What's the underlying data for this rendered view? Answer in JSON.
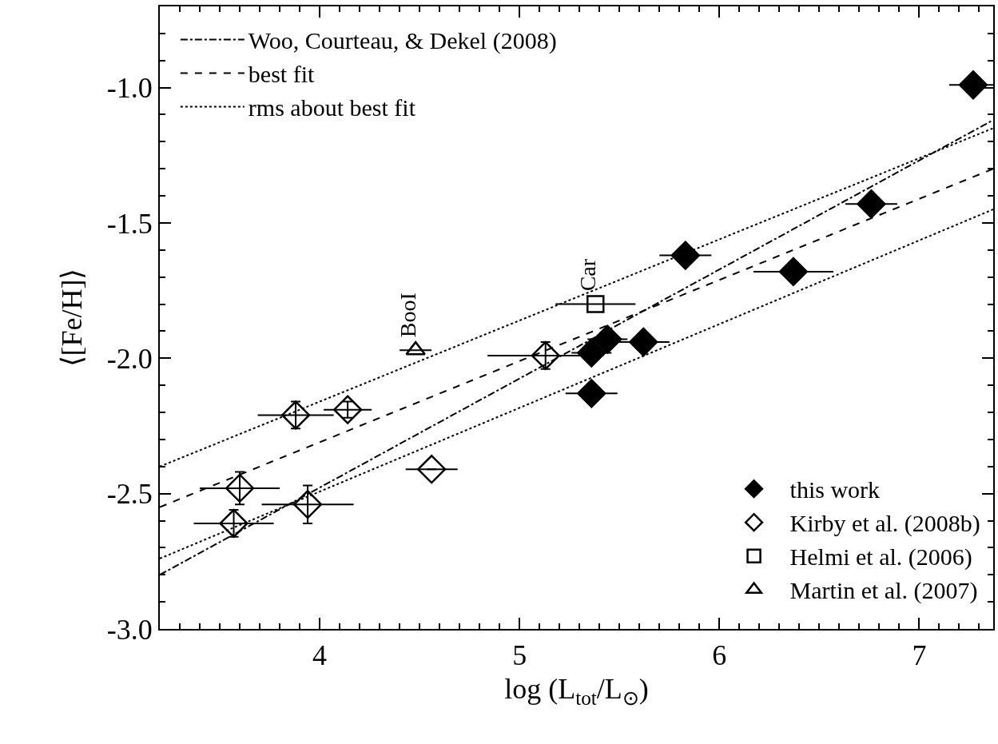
{
  "chart_data": {
    "type": "scatter",
    "xlabel": "log (L$_{tot}$/L$_{⊙}$)",
    "ylabel": "⟨[Fe/H]⟩",
    "xlim": [
      3.2,
      7.37
    ],
    "ylim": [
      -3.0,
      -0.7
    ],
    "xticks": [
      4,
      5,
      6,
      7,
      {
        "value": 3.2,
        "label": null
      },
      {
        "value": 3.3,
        "label": null
      },
      {
        "value": 3.4,
        "label": null
      },
      {
        "value": 3.5,
        "label": null
      },
      {
        "value": 3.6,
        "label": null
      },
      {
        "value": 3.7,
        "label": null
      },
      {
        "value": 3.8,
        "label": null
      },
      {
        "value": 3.9,
        "label": null
      },
      {
        "value": 4.1,
        "label": null
      },
      {
        "value": 4.2,
        "label": null
      },
      {
        "value": 4.3,
        "label": null
      },
      {
        "value": 4.4,
        "label": null
      },
      {
        "value": 4.5,
        "label": null
      },
      {
        "value": 4.6,
        "label": null
      },
      {
        "value": 4.7,
        "label": null
      },
      {
        "value": 4.8,
        "label": null
      },
      {
        "value": 4.9,
        "label": null
      },
      {
        "value": 5.1,
        "label": null
      },
      {
        "value": 5.2,
        "label": null
      },
      {
        "value": 5.3,
        "label": null
      },
      {
        "value": 5.4,
        "label": null
      },
      {
        "value": 5.5,
        "label": null
      },
      {
        "value": 5.6,
        "label": null
      },
      {
        "value": 5.7,
        "label": null
      },
      {
        "value": 5.8,
        "label": null
      },
      {
        "value": 5.9,
        "label": null
      },
      {
        "value": 6.1,
        "label": null
      },
      {
        "value": 6.2,
        "label": null
      },
      {
        "value": 6.3,
        "label": null
      },
      {
        "value": 6.4,
        "label": null
      },
      {
        "value": 6.5,
        "label": null
      },
      {
        "value": 6.6,
        "label": null
      },
      {
        "value": 6.7,
        "label": null
      },
      {
        "value": 6.8,
        "label": null
      },
      {
        "value": 6.9,
        "label": null
      },
      {
        "value": 7.1,
        "label": null
      },
      {
        "value": 7.2,
        "label": null
      },
      {
        "value": 7.3,
        "label": null
      }
    ],
    "yticks": [
      {
        "value": -3.0,
        "label": "-3.0"
      },
      -2.5,
      {
        "value": -2.0,
        "label": "-2.0"
      },
      -1.5,
      {
        "value": -1.0,
        "label": "-1.0"
      },
      {
        "value": -2.9,
        "label": null
      },
      {
        "value": -2.8,
        "label": null
      },
      {
        "value": -2.7,
        "label": null
      },
      {
        "value": -2.6,
        "label": null
      },
      {
        "value": -2.4,
        "label": null
      },
      {
        "value": -2.3,
        "label": null
      },
      {
        "value": -2.2,
        "label": null
      },
      {
        "value": -2.1,
        "label": null
      },
      {
        "value": -1.9,
        "label": null
      },
      {
        "value": -1.8,
        "label": null
      },
      {
        "value": -1.7,
        "label": null
      },
      {
        "value": -1.6,
        "label": null
      },
      {
        "value": -1.4,
        "label": null
      },
      {
        "value": -1.3,
        "label": null
      },
      {
        "value": -1.2,
        "label": null
      },
      {
        "value": -1.1,
        "label": null
      },
      {
        "value": -0.9,
        "label": null
      },
      {
        "value": -0.8,
        "label": null
      }
    ],
    "legend": [
      "top left",
      "bottom right"
    ],
    "series": [
      {
        "name": "Woo, Courteau, & Dekel (2008)",
        "type": "line",
        "line_style": "dashdot",
        "color": "#000000",
        "x": [
          3.2,
          7.37
        ],
        "values": [
          -2.8,
          -1.12
        ]
      },
      {
        "name": "best fit",
        "type": "line",
        "line_style": "dashed",
        "color": "#000000",
        "x": [
          3.2,
          7.37
        ],
        "values": [
          -2.55,
          -1.3
        ]
      },
      {
        "name": "rms about best fit",
        "type": "line",
        "line_style": "dotted",
        "color": "#000000",
        "x": [
          3.2,
          7.37
        ],
        "values": [
          -2.4,
          -1.15
        ]
      },
      {
        "type": "line",
        "line_style": "dotted",
        "color": "#000000",
        "x": [
          3.2,
          7.37
        ],
        "values": [
          -2.74,
          -1.45
        ]
      },
      {
        "name": "this work",
        "marker": "diamond",
        "color": "#000000",
        "x": [
          7.27,
          6.76,
          6.37,
          5.83,
          5.62,
          5.44,
          5.36,
          5.36
        ],
        "values": [
          -0.99,
          -1.43,
          -1.68,
          -1.62,
          -1.94,
          -1.93,
          -1.98,
          -2.13
        ],
        "xerrors": [
          0.12,
          0.13,
          0.2,
          0.13,
          0.13,
          0.1,
          0.1,
          0.13
        ]
      },
      {
        "name": "Kirby et al. (2008b)",
        "marker": "diamond-open",
        "color": "#000000",
        "x": [
          3.88,
          4.14,
          3.6,
          3.57,
          3.94,
          4.56,
          5.13
        ],
        "values": [
          -2.21,
          -2.19,
          -2.48,
          -2.61,
          -2.54,
          -2.41,
          -1.99
        ],
        "xerrors": [
          0.19,
          0.12,
          0.2,
          0.2,
          0.23,
          0.13,
          0.29
        ],
        "errors": [
          0.05,
          0.03,
          0.06,
          0.05,
          0.07,
          null,
          0.05
        ]
      },
      {
        "name": "Helmi et al. (2006)",
        "marker": "square-open",
        "color": "#000000",
        "x": [
          5.38
        ],
        "values": [
          -1.8
        ],
        "xerrors": [
          0.2
        ]
      },
      {
        "name": "Martin et al. (2007)",
        "marker": "triangle-open",
        "color": "#000000",
        "x": [
          4.48
        ],
        "values": [
          -1.97
        ],
        "xerrors": [
          0.08
        ]
      }
    ],
    "annotations": [
      {
        "text": "BooI",
        "x": 4.48,
        "y": -1.97
      },
      {
        "text": "Car",
        "x": 5.38,
        "y": -1.8
      }
    ]
  }
}
